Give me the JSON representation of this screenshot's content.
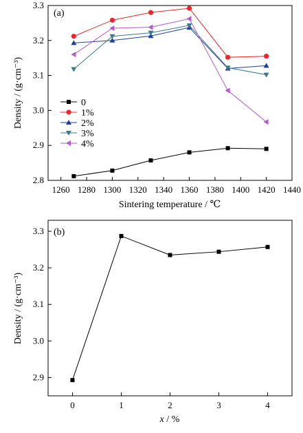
{
  "chart_data": [
    {
      "panel": "(a)",
      "type": "line",
      "xlabel": "Sintering temperature / ℃",
      "ylabel": "Density / (g·cm⁻³)",
      "xlim": [
        1250,
        1440
      ],
      "ylim": [
        2.8,
        3.3
      ],
      "xticks": [
        "1260",
        "1280",
        "1300",
        "1320",
        "1340",
        "1360",
        "1380",
        "1400",
        "1420",
        "1440"
      ],
      "yticks": [
        "2.8",
        "2.9",
        "3.0",
        "3.1",
        "3.2",
        "3.3"
      ],
      "legend_position": "center-left",
      "x": [
        1270,
        1300,
        1330,
        1360,
        1390,
        1420
      ],
      "series": [
        {
          "name": "0",
          "marker": "square",
          "color": "#000000",
          "values": [
            2.812,
            2.828,
            2.857,
            2.88,
            2.892,
            2.89
          ]
        },
        {
          "name": "1%",
          "marker": "circle",
          "color": "#e8282c",
          "values": [
            3.212,
            3.258,
            3.28,
            3.292,
            3.152,
            3.155
          ]
        },
        {
          "name": "2%",
          "marker": "triangle-up",
          "color": "#1f3f9a",
          "values": [
            3.193,
            3.2,
            3.213,
            3.237,
            3.12,
            3.128
          ]
        },
        {
          "name": "3%",
          "marker": "triangle-down",
          "color": "#3a7a8a",
          "values": [
            3.118,
            3.212,
            3.222,
            3.243,
            3.122,
            3.102
          ]
        },
        {
          "name": "4%",
          "marker": "triangle-left",
          "color": "#b45ac8",
          "values": [
            3.16,
            3.235,
            3.238,
            3.262,
            3.057,
            2.967
          ]
        }
      ]
    },
    {
      "panel": "(b)",
      "type": "line",
      "xlabel_var": "x",
      "xlabel_unit": " / %",
      "ylabel": "Density / (g·cm⁻³)",
      "xlim": [
        -0.5,
        4.5
      ],
      "ylim": [
        2.85,
        3.33
      ],
      "xticks": [
        "0",
        "1",
        "2",
        "3",
        "4"
      ],
      "yticks": [
        "2.9",
        "3.0",
        "3.1",
        "3.2",
        "3.3"
      ],
      "x": [
        0,
        1,
        2,
        3,
        4
      ],
      "series": [
        {
          "marker": "square",
          "color": "#000000",
          "values": [
            2.893,
            3.287,
            3.235,
            3.244,
            3.257
          ]
        }
      ]
    }
  ]
}
